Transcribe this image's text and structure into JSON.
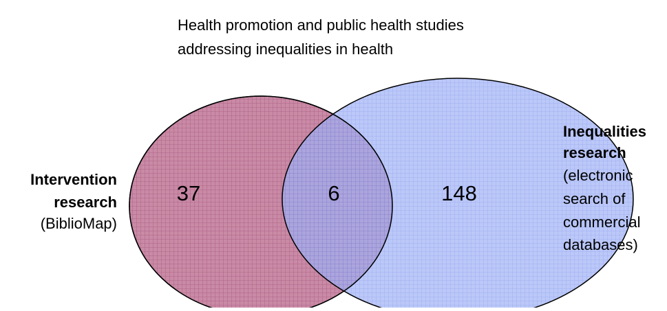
{
  "title": [
    "Health promotion and public health studies",
    "addressing inequalities in health"
  ],
  "sets": [
    {
      "name": [
        "Intervention",
        "research"
      ],
      "note": [
        "(BiblioMap)"
      ]
    },
    {
      "name": [
        "Inequalities",
        "research"
      ],
      "note": [
        "(electronic",
        "search of",
        "commercial",
        "databases)"
      ]
    }
  ],
  "regions": {
    "left_only": 37,
    "both": 6,
    "right_only": 148
  }
}
